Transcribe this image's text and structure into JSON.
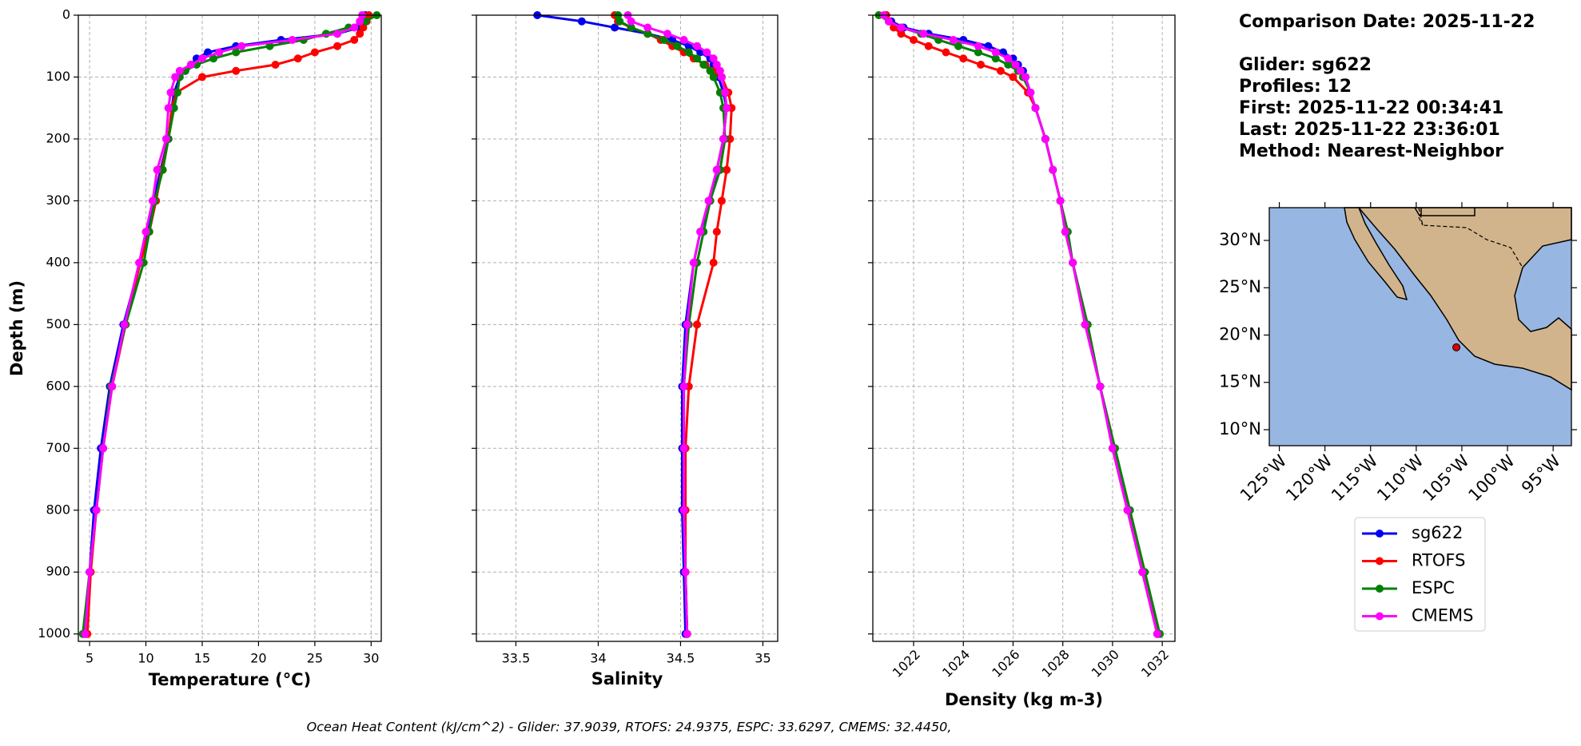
{
  "depths": [
    0,
    10,
    20,
    30,
    40,
    50,
    60,
    70,
    80,
    90,
    100,
    125,
    150,
    200,
    250,
    300,
    350,
    400,
    500,
    600,
    700,
    800,
    900,
    1000
  ],
  "legend": {
    "entries": [
      {
        "name": "sg622",
        "color": "#0000ee"
      },
      {
        "name": "RTOFS",
        "color": "#ff0000"
      },
      {
        "name": "ESPC",
        "color": "#008000"
      },
      {
        "name": "CMEMS",
        "color": "#ff00ff"
      }
    ]
  },
  "chart_data": [
    {
      "type": "line",
      "xlabel": "Temperature (°C)",
      "ylabel": "Depth (m)",
      "xlim": [
        4.0,
        30.9
      ],
      "xticks": [
        5,
        10,
        15,
        20,
        25,
        30
      ],
      "ylim": [
        1012,
        0
      ],
      "yticks": [
        0,
        100,
        200,
        300,
        400,
        500,
        600,
        700,
        800,
        900,
        1000
      ],
      "grid": true,
      "series": [
        {
          "values": [
            29.5,
            29.3,
            29,
            27,
            22,
            18,
            15.5,
            14.5,
            14,
            13.5,
            13,
            12.5,
            12.3,
            12,
            11.3,
            10.7,
            10.2,
            9.5,
            8,
            6.8,
            6,
            5.4,
            5.0,
            4.6
          ]
        },
        {
          "values": [
            29.8,
            29.6,
            29.3,
            29,
            28.5,
            27,
            25,
            23.5,
            21.5,
            18,
            15,
            12.7,
            12.3,
            12,
            11.4,
            10.9,
            10.3,
            9.5,
            8.2,
            7,
            6.2,
            5.6,
            5.1,
            4.8
          ]
        },
        {
          "values": [
            30.5,
            29.5,
            28,
            26,
            24,
            21,
            18,
            16,
            14.5,
            13.5,
            13,
            12.8,
            12.5,
            12,
            11.5,
            10.8,
            10.3,
            9.8,
            8.2,
            6.9,
            6.2,
            5.6,
            5.0,
            4.4
          ]
        },
        {
          "values": [
            29.2,
            29,
            28.5,
            27,
            23,
            18.5,
            16.5,
            15,
            14,
            13,
            12.6,
            12.2,
            12.0,
            11.8,
            11,
            10.6,
            10,
            9.4,
            8.1,
            7,
            6.2,
            5.6,
            5.0,
            4.6
          ]
        }
      ]
    },
    {
      "type": "line",
      "xlabel": "Salinity",
      "xlim": [
        33.26,
        35.09
      ],
      "xticks": [
        33.5,
        34.0,
        34.5,
        35.0
      ],
      "ylim": [
        1012,
        0
      ],
      "yticks": [
        0,
        100,
        200,
        300,
        400,
        500,
        600,
        700,
        800,
        900,
        1000
      ],
      "grid": true,
      "series": [
        {
          "values": [
            33.63,
            33.9,
            34.1,
            34.3,
            34.45,
            34.55,
            34.62,
            34.68,
            34.7,
            34.72,
            34.73,
            34.76,
            34.78,
            34.76,
            34.72,
            34.68,
            34.62,
            34.58,
            34.53,
            34.51,
            34.51,
            34.51,
            34.52,
            34.53
          ]
        },
        {
          "values": [
            34.1,
            34.12,
            34.2,
            34.3,
            34.38,
            34.45,
            34.52,
            34.58,
            34.65,
            34.7,
            34.75,
            34.79,
            34.81,
            34.8,
            34.78,
            34.75,
            34.72,
            34.7,
            34.6,
            34.55,
            34.53,
            34.53,
            34.53,
            34.54
          ]
        },
        {
          "values": [
            34.12,
            34.13,
            34.2,
            34.3,
            34.4,
            34.48,
            34.55,
            34.6,
            34.64,
            34.68,
            34.7,
            34.74,
            34.76,
            34.77,
            34.74,
            34.68,
            34.64,
            34.6,
            34.55,
            34.52,
            34.52,
            34.52,
            34.53,
            34.54
          ]
        },
        {
          "values": [
            34.18,
            34.2,
            34.3,
            34.42,
            34.52,
            34.6,
            34.66,
            34.7,
            34.72,
            34.74,
            34.75,
            34.77,
            34.78,
            34.76,
            34.72,
            34.67,
            34.62,
            34.58,
            34.54,
            34.52,
            34.52,
            34.52,
            34.53,
            34.54
          ]
        }
      ]
    },
    {
      "type": "line",
      "xlabel": "Density (kg m-3)",
      "xlim": [
        1020.36,
        1032.51
      ],
      "xticks": [
        1022,
        1024,
        1026,
        1028,
        1030,
        1032
      ],
      "ylim": [
        1012,
        0
      ],
      "yticks": [
        0,
        100,
        200,
        300,
        400,
        500,
        600,
        700,
        800,
        900,
        1000
      ],
      "grid": true,
      "series": [
        {
          "values": [
            1020.9,
            1021.1,
            1021.6,
            1022.6,
            1024,
            1025,
            1025.6,
            1026,
            1026.2,
            1026.4,
            1026.5,
            1026.7,
            1026.9,
            1027.3,
            1027.6,
            1027.9,
            1028.1,
            1028.4,
            1028.9,
            1029.5,
            1030.0,
            1030.6,
            1031.2,
            1031.8
          ]
        },
        {
          "values": [
            1020.9,
            1021.0,
            1021.2,
            1021.5,
            1022,
            1022.6,
            1023.3,
            1024,
            1024.7,
            1025.5,
            1026,
            1026.6,
            1026.9,
            1027.3,
            1027.6,
            1027.9,
            1028.1,
            1028.4,
            1028.9,
            1029.5,
            1030.0,
            1030.6,
            1031.2,
            1031.8
          ]
        },
        {
          "values": [
            1020.6,
            1021,
            1021.5,
            1022.3,
            1023,
            1023.8,
            1024.6,
            1025.3,
            1025.8,
            1026.2,
            1026.4,
            1026.7,
            1026.9,
            1027.3,
            1027.6,
            1027.9,
            1028.2,
            1028.4,
            1029.0,
            1029.5,
            1030.1,
            1030.7,
            1031.3,
            1031.9
          ]
        },
        {
          "values": [
            1020.8,
            1021.0,
            1021.5,
            1022.4,
            1023.6,
            1024.6,
            1025.3,
            1025.8,
            1026.1,
            1026.3,
            1026.5,
            1026.7,
            1026.9,
            1027.3,
            1027.6,
            1027.9,
            1028.1,
            1028.4,
            1028.9,
            1029.5,
            1030.0,
            1030.6,
            1031.2,
            1031.8
          ]
        }
      ]
    }
  ],
  "info": {
    "lines": [
      "Comparison Date: 2025-11-22",
      "Glider: sg622",
      "Profiles: 12",
      "First: 2025-11-22 00:34:41",
      "Last: 2025-11-22 23:36:01",
      "Method: Nearest-Neighbor"
    ]
  },
  "map": {
    "type": "map",
    "xlim": [
      -126.1,
      -93.0
    ],
    "ylim": [
      8.31,
      33.46
    ],
    "xticks": [
      {
        "value": -125,
        "label": "125°W"
      },
      {
        "value": -120,
        "label": "120°W"
      },
      {
        "value": -115,
        "label": "115°W"
      },
      {
        "value": -110,
        "label": "110°W"
      },
      {
        "value": -105,
        "label": "105°W"
      },
      {
        "value": -100,
        "label": "100°W"
      },
      {
        "value": -95,
        "label": "95°W"
      }
    ],
    "yticks": [
      {
        "value": 10,
        "label": "10°N"
      },
      {
        "value": 15,
        "label": "15°N"
      },
      {
        "value": 20,
        "label": "20°N"
      },
      {
        "value": 25,
        "label": "25°N"
      },
      {
        "value": 30,
        "label": "30°N"
      }
    ],
    "marker": {
      "lon": -105.6,
      "lat": 18.7,
      "color": "#e00000"
    }
  },
  "footer": "Ocean Heat Content (kJ/cm^2) - Glider: 37.9039,  RTOFS: 24.9375,  ESPC: 33.6297,  CMEMS: 32.4450,"
}
